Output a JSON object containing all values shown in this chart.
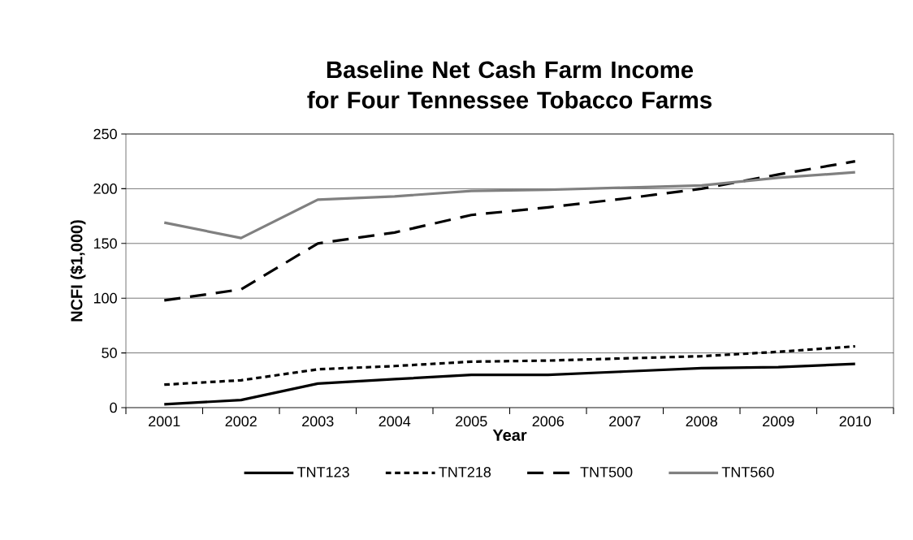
{
  "chart_data": {
    "type": "line",
    "title": "Baseline Net Cash Farm Income for Four Tennessee Tobacco Farms",
    "xlabel": "Year",
    "ylabel": "NCFI ($1,000)",
    "categories": [
      "2001",
      "2002",
      "2003",
      "2004",
      "2005",
      "2006",
      "2007",
      "2008",
      "2009",
      "2010"
    ],
    "series": [
      {
        "name": "TNT123",
        "color": "#000000",
        "line_style": "solid",
        "values": [
          3,
          7,
          22,
          26,
          30,
          30,
          33,
          36,
          37,
          40
        ]
      },
      {
        "name": "TNT218",
        "color": "#000000",
        "line_style": "dotted",
        "values": [
          21,
          25,
          35,
          38,
          42,
          43,
          45,
          47,
          51,
          56
        ]
      },
      {
        "name": "TNT500",
        "color": "#000000",
        "line_style": "dashed",
        "values": [
          98,
          108,
          150,
          160,
          176,
          183,
          191,
          200,
          213,
          225
        ]
      },
      {
        "name": "TNT560",
        "color": "#808080",
        "line_style": "solid",
        "values": [
          169,
          155,
          190,
          193,
          198,
          199,
          201,
          203,
          210,
          215
        ]
      }
    ],
    "ylim": [
      0,
      250
    ],
    "yticks": [
      0,
      50,
      100,
      150,
      200,
      250
    ],
    "grid": "y",
    "legend": "bottom",
    "marker": "none"
  }
}
